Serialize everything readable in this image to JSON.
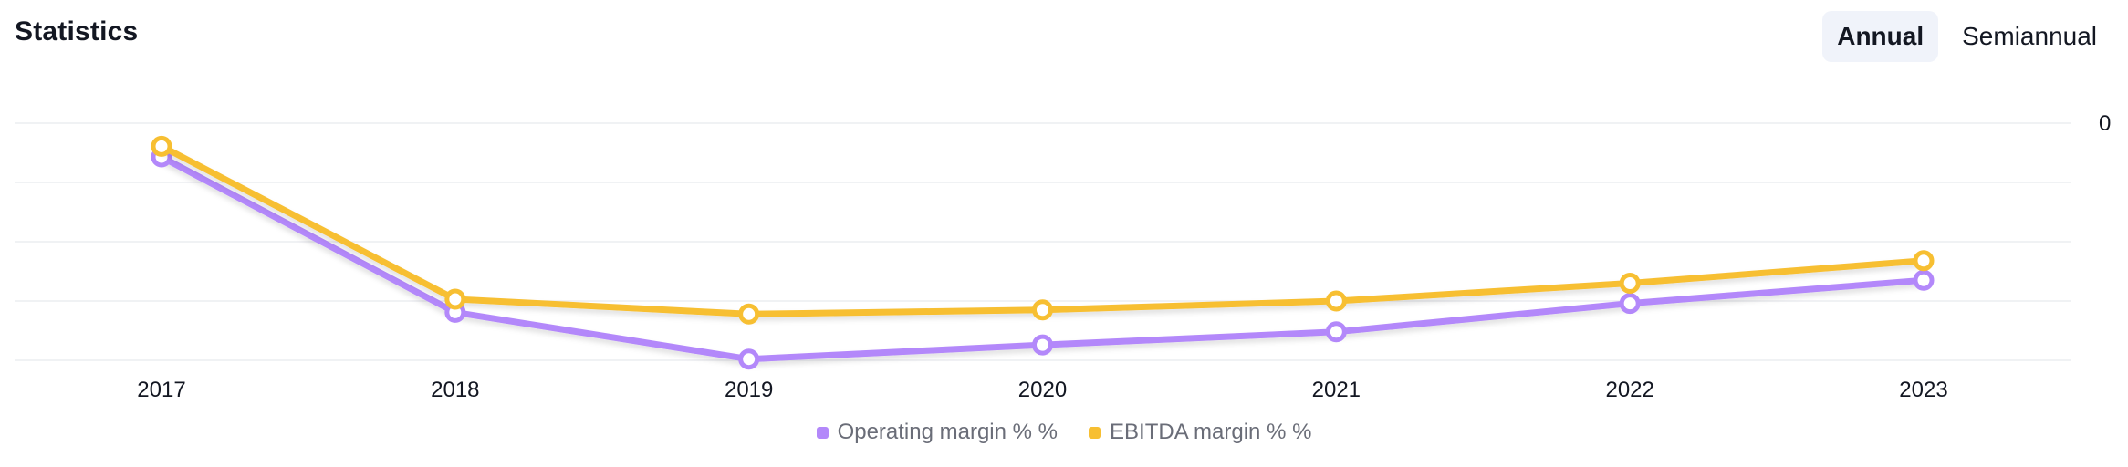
{
  "header": {
    "title": "Statistics",
    "tabs": [
      {
        "label": "Annual",
        "active": true
      },
      {
        "label": "Semiannual",
        "active": false
      }
    ]
  },
  "chart_data": {
    "type": "line",
    "title": "",
    "xlabel": "",
    "ylabel": "",
    "x": [
      "2017",
      "2018",
      "2019",
      "2020",
      "2021",
      "2022",
      "2023"
    ],
    "yticks": [
      "0"
    ],
    "ylim": [
      -40,
      0
    ],
    "grid": true,
    "legend_position": "bottom",
    "series": [
      {
        "name": "Operating margin % %",
        "color": "#b388fa",
        "values": [
          -5.7,
          -31.9,
          -39.8,
          -37.4,
          -35.2,
          -30.4,
          -26.5
        ]
      },
      {
        "name": "EBITDA margin % %",
        "color": "#f7bf32",
        "values": [
          -3.9,
          -29.7,
          -32.2,
          -31.5,
          -30.0,
          -27.0,
          -23.2
        ]
      }
    ]
  }
}
